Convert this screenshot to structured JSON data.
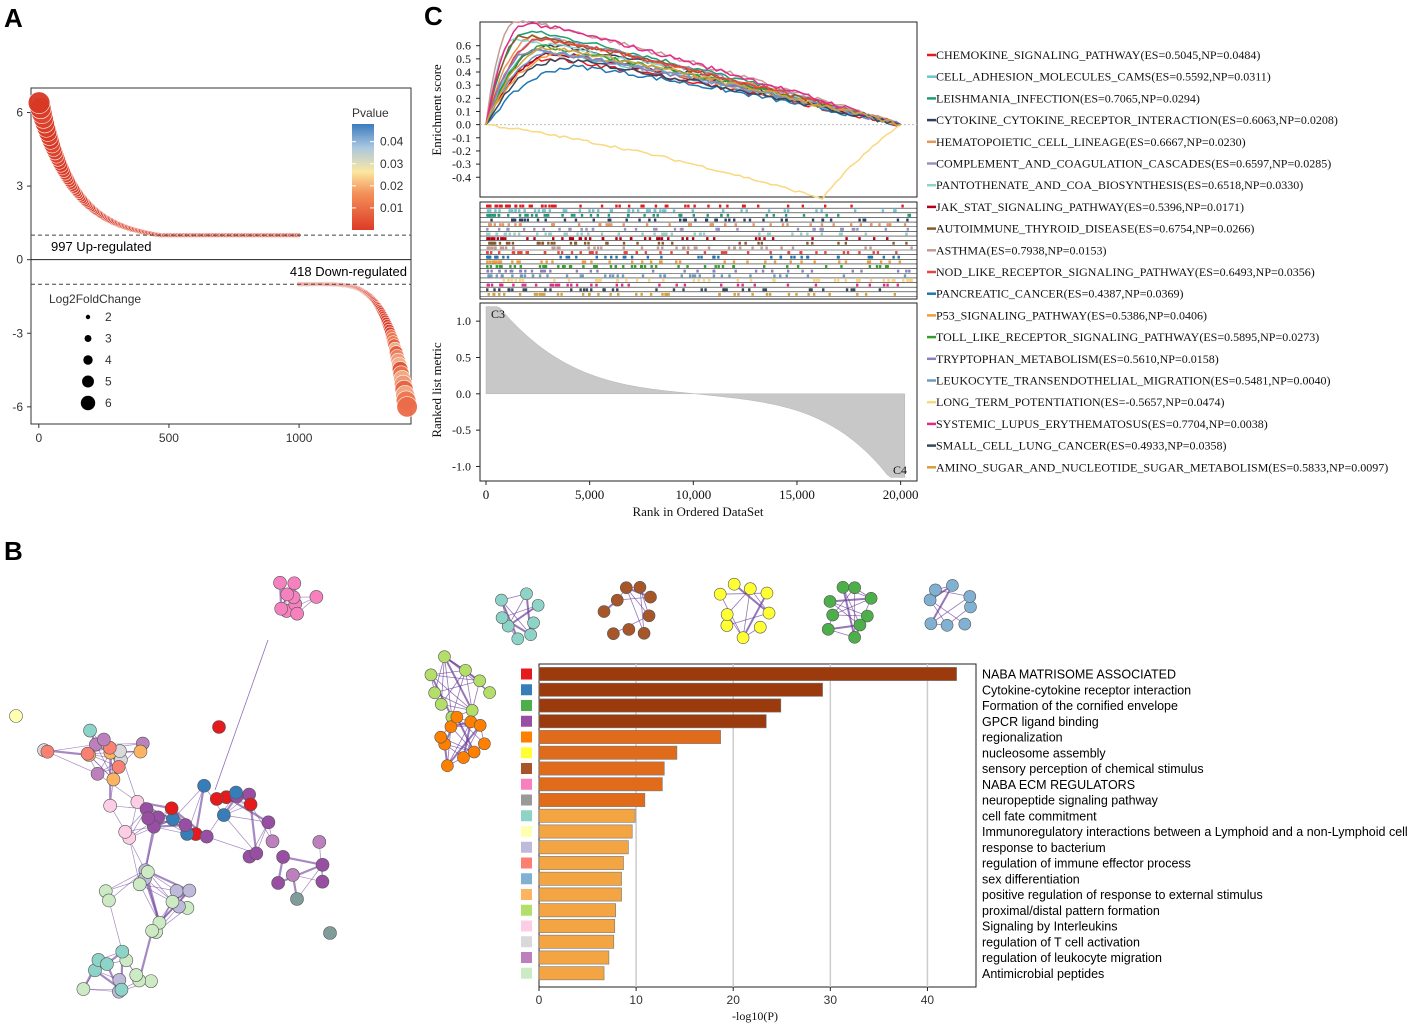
{
  "panels": {
    "a": "A",
    "b": "B",
    "c": "C"
  },
  "colors": {
    "pvalue_low": "#dd3b27",
    "pvalue_mid": "#fbe7a1",
    "pvalue_high": "#3d7bbd",
    "bar_dark": "#9b3a0c",
    "bar_mid": "#e06c1b",
    "bar_light": "#f3a443",
    "ranked_fill": "#c8c8c8"
  },
  "chart_data": [
    {
      "id": "volcano-rank",
      "type": "scatter",
      "title": "",
      "xlabel": "",
      "ylabel": "",
      "xlim": [
        -30,
        1430
      ],
      "ylim": [
        -6.7,
        7
      ],
      "xticks": [
        0,
        500,
        1000
      ],
      "yticks": [
        6,
        3,
        0,
        -3,
        -6
      ],
      "annotations": {
        "up": "997 Up-regulated",
        "down": "418 Down-regulated"
      },
      "thresholds": [
        1,
        -1
      ],
      "up_count": 997,
      "down_count": 418,
      "series": [
        {
          "name": "Up-regulated",
          "x_range": [
            1,
            997
          ],
          "logfc_start": 6.4,
          "logfc_end": 1.0
        },
        {
          "name": "Down-regulated",
          "x_range": [
            1000,
            1415
          ],
          "logfc_start": -1.0,
          "logfc_end": -6.0
        }
      ],
      "legend_color": {
        "title": "Pvalue",
        "ticks": [
          0.04,
          0.03,
          0.02,
          0.01
        ],
        "range": [
          0.0,
          0.048
        ]
      },
      "legend_size": {
        "title": "Log2FoldChange",
        "values": [
          2,
          3,
          4,
          5,
          6
        ]
      }
    },
    {
      "id": "gsea-enrichment",
      "type": "line",
      "xlabel": "Rank in Ordered DataSet",
      "ylabel_top": "Enrichment score",
      "ylabel_bottom": "Ranked list metric",
      "xlim": [
        0,
        20500
      ],
      "xticks": [
        0,
        5000,
        10000,
        15000,
        20000
      ],
      "xtick_labels": [
        "0",
        "5,000",
        "10,000",
        "15,000",
        "20,000"
      ],
      "es_ylim": [
        -0.55,
        0.78
      ],
      "es_yticks": [
        0.6,
        0.5,
        0.4,
        0.3,
        0.2,
        0.1,
        0.0,
        -0.1,
        -0.2,
        -0.3,
        -0.4
      ],
      "es_ytick_labels": [
        "0.6",
        "0.5",
        "0.4",
        "0.3",
        "0.2",
        "0.1",
        "0.0",
        "-0.1",
        "-0.2",
        "-0.3",
        "-0.4"
      ],
      "metric_ylim": [
        -1.2,
        1.25
      ],
      "metric_yticks": [
        1.0,
        0.5,
        0.0,
        -0.5,
        -1.0
      ],
      "metric_ytick_labels": [
        "1.0",
        "0.5",
        "0.0",
        "-0.5",
        "-1.0"
      ],
      "metric_labels": {
        "left": "C3",
        "right": "C4"
      },
      "series": [
        {
          "name": "CHEMOKINE_SIGNALING_PATHWAY(ES=0.5045,NP=0.0484)",
          "color": "#e41a1c",
          "es": 0.5045,
          "peak_rank": 3000
        },
        {
          "name": "CELL_ADHESION_MOLECULES_CAMS(ES=0.5592,NP=0.0311)",
          "color": "#6cc3d8",
          "es": 0.5592,
          "peak_rank": 2600
        },
        {
          "name": "LEISHMANIA_INFECTION(ES=0.7065,NP=0.0294)",
          "color": "#1b9e77",
          "es": 0.7065,
          "peak_rank": 2100
        },
        {
          "name": "CYTOKINE_CYTOKINE_RECEPTOR_INTERACTION(ES=0.6063,NP=0.0208)",
          "color": "#2a3f6b",
          "es": 0.6063,
          "peak_rank": 3200
        },
        {
          "name": "HEMATOPOIETIC_CELL_LINEAGE(ES=0.6667,NP=0.0230)",
          "color": "#e8955a",
          "es": 0.6667,
          "peak_rank": 2400
        },
        {
          "name": "COMPLEMENT_AND_COAGULATION_CASCADES(ES=0.6597,NP=0.0285)",
          "color": "#9c8ec4",
          "es": 0.6597,
          "peak_rank": 2800
        },
        {
          "name": "PANTOTHENATE_AND_COA_BIOSYNTHESIS(ES=0.6518,NP=0.0330)",
          "color": "#8dd3c7",
          "es": 0.6518,
          "peak_rank": 1400
        },
        {
          "name": "JAK_STAT_SIGNALING_PATHWAY(ES=0.5396,NP=0.0171)",
          "color": "#b3001b",
          "es": 0.5396,
          "peak_rank": 3400
        },
        {
          "name": "AUTOIMMUNE_THYROID_DISEASE(ES=0.6754,NP=0.0266)",
          "color": "#8b5a2b",
          "es": 0.6754,
          "peak_rank": 1900
        },
        {
          "name": "ASTHMA(ES=0.7938,NP=0.0153)",
          "color": "#c49c94",
          "es": 0.7938,
          "peak_rank": 1500
        },
        {
          "name": "NOD_LIKE_RECEPTOR_SIGNALING_PATHWAY(ES=0.6493,NP=0.0356)",
          "color": "#e8453c",
          "es": 0.6493,
          "peak_rank": 2700
        },
        {
          "name": "PANCREATIC_CANCER(ES=0.4387,NP=0.0369)",
          "color": "#1f78b4",
          "es": 0.4387,
          "peak_rank": 4500
        },
        {
          "name": "P53_SIGNALING_PATHWAY(ES=0.5386,NP=0.0406)",
          "color": "#f39c3c",
          "es": 0.5386,
          "peak_rank": 3700
        },
        {
          "name": "TOLL_LIKE_RECEPTOR_SIGNALING_PATHWAY(ES=0.5895,NP=0.0273)",
          "color": "#33a02c",
          "es": 0.5895,
          "peak_rank": 2900
        },
        {
          "name": "TRYPTOPHAN_METABOLISM(ES=0.5610,NP=0.0158)",
          "color": "#8a7fc0",
          "es": 0.561,
          "peak_rank": 2300
        },
        {
          "name": "LEUKOCYTE_TRANSENDOTHELIAL_MIGRATION(ES=0.5481,NP=0.0040)",
          "color": "#6a9ec8",
          "es": 0.5481,
          "peak_rank": 3300
        },
        {
          "name": "LONG_TERM_POTENTIATION(ES=-0.5657,NP=0.0474)",
          "color": "#fbd87f",
          "es": -0.5657,
          "peak_rank": 16300
        },
        {
          "name": "SYSTEMIC_LUPUS_ERYTHEMATOSUS(ES=0.7704,NP=0.0038)",
          "color": "#e7298a",
          "es": 0.7704,
          "peak_rank": 2000
        },
        {
          "name": "SMALL_CELL_LUNG_CANCER(ES=0.4933,NP=0.0358)",
          "color": "#34495e",
          "es": 0.4933,
          "peak_rank": 3800
        },
        {
          "name": "AMINO_SUGAR_AND_NUCLEOTIDE_SUGAR_METABOLISM(ES=0.5833,NP=0.0097)",
          "color": "#d4a03c",
          "es": 0.5833,
          "peak_rank": 3100
        }
      ]
    },
    {
      "id": "metascape-bars",
      "type": "bar",
      "orientation": "horizontal",
      "xlabel": "-log10(P)",
      "xlim": [
        0,
        45
      ],
      "xticks": [
        0,
        10,
        20,
        30,
        40
      ],
      "categories": [
        "NABA MATRISOME ASSOCIATED",
        "Cytokine-cytokine receptor interaction",
        "Formation of the cornified envelope",
        "GPCR ligand binding",
        "regionalization",
        "nucleosome assembly",
        "sensory perception of chemical stimulus",
        "NABA ECM REGULATORS",
        "neuropeptide signaling pathway",
        "cell fate commitment",
        "Immunoregulatory interactions between a Lymphoid and a non-Lymphoid cell",
        "response to bacterium",
        "regulation of immune effector process",
        "sex differentiation",
        "positive regulation of response to external stimulus",
        "proximal/distal pattern formation",
        "Signaling by Interleukins",
        "regulation of T cell activation",
        "regulation of leukocyte migration",
        "Antimicrobial peptides"
      ],
      "values": [
        43.0,
        29.2,
        24.9,
        23.4,
        18.7,
        14.2,
        12.9,
        12.7,
        10.9,
        9.9,
        9.6,
        9.2,
        8.7,
        8.5,
        8.5,
        7.9,
        7.8,
        7.7,
        7.2,
        6.7
      ],
      "cluster_colors": [
        "#e41a1c",
        "#377eb8",
        "#4daf4a",
        "#984ea3",
        "#ff7f00",
        "#ffff33",
        "#a65628",
        "#f781bf",
        "#999999",
        "#8dd3c7",
        "#ffffb3",
        "#bebada",
        "#fb8072",
        "#80b1d3",
        "#fdb462",
        "#b3de69",
        "#fccde5",
        "#d9d9d9",
        "#bc80bd",
        "#ccebc5"
      ]
    }
  ]
}
